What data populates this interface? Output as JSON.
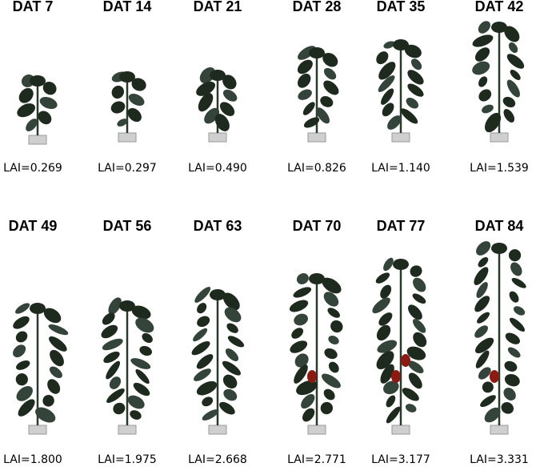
{
  "panels": [
    {
      "day": "DAT 7",
      "lai": "LAI=0.269"
    },
    {
      "day": "DAT 14",
      "lai": "LAI=0.297"
    },
    {
      "day": "DAT 21",
      "lai": "LAI=0.490"
    },
    {
      "day": "DAT 28",
      "lai": "LAI=0.826"
    },
    {
      "day": "DAT 35",
      "lai": "LAI=1.140"
    },
    {
      "day": "DAT 42",
      "lai": "LAI=1.539"
    },
    {
      "day": "DAT 49",
      "lai": "LAI=1.800"
    },
    {
      "day": "DAT 56",
      "lai": "LAI=1.975"
    },
    {
      "day": "DAT 63",
      "lai": "LAI=2.668"
    },
    {
      "day": "DAT 70",
      "lai": "LAI=2.771"
    },
    {
      "day": "DAT 77",
      "lai": "LAI=3.177"
    },
    {
      "day": "DAT 84",
      "lai": "LAI=3.331"
    }
  ],
  "colors": {
    "leaf": "#1f2a1f",
    "leaf_light": "#34443a",
    "pot": "#cfcfcf",
    "fruit": "#8a1a12"
  }
}
